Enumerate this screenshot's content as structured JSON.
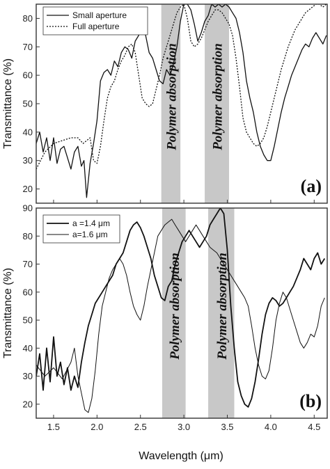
{
  "figure": {
    "xlabel": "Wavelength (μm)",
    "colors": {
      "band": "#c8c8c8",
      "line": "#111111",
      "frame": "#333333"
    }
  },
  "chart_data": [
    {
      "type": "line",
      "panel_label": "(a)",
      "ylabel": "Transmittance (%)",
      "xlim": [
        1.3,
        4.65
      ],
      "ylim": [
        15,
        85
      ],
      "x_ticks": [
        1.5,
        2.0,
        2.5,
        3.0,
        3.5,
        4.0,
        4.5
      ],
      "x_tick_labels": [],
      "y_ticks": [
        20,
        30,
        40,
        50,
        60,
        70,
        80
      ],
      "y_tick_labels": [
        "20",
        "30",
        "40",
        "50",
        "60",
        "70",
        "80"
      ],
      "legend_position": "top-left",
      "shaded_regions": [
        {
          "x0": 2.74,
          "x1": 2.96,
          "label": "Polymer absorption"
        },
        {
          "x0": 3.24,
          "x1": 3.52,
          "label": "Polymer absorption"
        }
      ],
      "series": [
        {
          "name": "Small aperture",
          "style": "solid",
          "x": [
            1.3,
            1.34,
            1.38,
            1.42,
            1.46,
            1.5,
            1.54,
            1.58,
            1.62,
            1.66,
            1.7,
            1.74,
            1.78,
            1.82,
            1.85,
            1.88,
            1.92,
            1.96,
            2.0,
            2.04,
            2.08,
            2.12,
            2.16,
            2.2,
            2.24,
            2.28,
            2.32,
            2.36,
            2.4,
            2.44,
            2.48,
            2.52,
            2.56,
            2.6,
            2.64,
            2.68,
            2.72,
            2.76,
            2.8,
            2.84,
            2.88,
            2.92,
            2.96,
            3.0,
            3.04,
            3.08,
            3.12,
            3.16,
            3.2,
            3.24,
            3.28,
            3.32,
            3.36,
            3.4,
            3.44,
            3.48,
            3.52,
            3.56,
            3.6,
            3.64,
            3.68,
            3.72,
            3.76,
            3.8,
            3.84,
            3.88,
            3.92,
            3.96,
            4.0,
            4.04,
            4.08,
            4.12,
            4.16,
            4.2,
            4.24,
            4.28,
            4.32,
            4.36,
            4.4,
            4.44,
            4.48,
            4.52,
            4.56,
            4.6,
            4.64
          ],
          "y": [
            36,
            40,
            33,
            38,
            30,
            38,
            29,
            34,
            35,
            31,
            27,
            33,
            35,
            28,
            30,
            17,
            29,
            36,
            44,
            58,
            61,
            62,
            60,
            65,
            63,
            68,
            70,
            69,
            66,
            72,
            74,
            77,
            74,
            68,
            66,
            62,
            58,
            57,
            62,
            60,
            64,
            70,
            79,
            85,
            85,
            83,
            78,
            72,
            75,
            79,
            81,
            85,
            84,
            85,
            84,
            85,
            84,
            82,
            80,
            75,
            68,
            58,
            52,
            47,
            40,
            35,
            32,
            30,
            30,
            35,
            41,
            47,
            52,
            56,
            60,
            63,
            66,
            69,
            71,
            70,
            73,
            75,
            73,
            71,
            74
          ]
        },
        {
          "name": "Full aperture",
          "style": "dotted",
          "x": [
            1.3,
            1.4,
            1.5,
            1.6,
            1.7,
            1.78,
            1.84,
            1.88,
            1.92,
            1.96,
            2.0,
            2.04,
            2.08,
            2.12,
            2.16,
            2.2,
            2.24,
            2.28,
            2.32,
            2.36,
            2.4,
            2.44,
            2.48,
            2.52,
            2.56,
            2.6,
            2.64,
            2.68,
            2.72,
            2.76,
            2.8,
            2.84,
            2.88,
            2.92,
            2.96,
            3.0,
            3.04,
            3.08,
            3.12,
            3.16,
            3.2,
            3.24,
            3.28,
            3.32,
            3.36,
            3.4,
            3.44,
            3.48,
            3.52,
            3.56,
            3.6,
            3.64,
            3.68,
            3.72,
            3.76,
            3.8,
            3.84,
            3.88,
            3.92,
            3.96,
            4.0,
            4.04,
            4.08,
            4.12,
            4.16,
            4.2,
            4.24,
            4.28,
            4.32,
            4.36,
            4.4,
            4.44,
            4.48,
            4.52,
            4.56,
            4.6,
            4.64
          ],
          "y": [
            27,
            33,
            36,
            37,
            38,
            38,
            36,
            37,
            38,
            30,
            29,
            35,
            44,
            52,
            56,
            58,
            62,
            65,
            67,
            70,
            71,
            68,
            60,
            52,
            50,
            49,
            50,
            55,
            60,
            66,
            70,
            74,
            78,
            82,
            84,
            85,
            80,
            72,
            70,
            71,
            73,
            76,
            79,
            81,
            83,
            83,
            82,
            80,
            78,
            74,
            66,
            56,
            45,
            40,
            38,
            36,
            35,
            36,
            38,
            42,
            47,
            52,
            57,
            62,
            66,
            70,
            73,
            76,
            78,
            80,
            82,
            83,
            84,
            85,
            85,
            84,
            85
          ]
        }
      ]
    },
    {
      "type": "line",
      "panel_label": "(b)",
      "ylabel": "Transmittance (%)",
      "xlim": [
        1.3,
        4.65
      ],
      "ylim": [
        15,
        90
      ],
      "x_ticks": [
        1.5,
        2.0,
        2.5,
        3.0,
        3.5,
        4.0,
        4.5
      ],
      "x_tick_labels": [
        "1.5",
        "2.0",
        "2.5",
        "3.0",
        "3.5",
        "4.0",
        "4.5"
      ],
      "y_ticks": [
        20,
        30,
        40,
        50,
        60,
        70,
        80,
        90
      ],
      "y_tick_labels": [
        "20",
        "30",
        "40",
        "50",
        "60",
        "70",
        "80",
        "90"
      ],
      "legend_position": "top-left",
      "shaded_regions": [
        {
          "x0": 2.75,
          "x1": 3.02,
          "label": "Polymer absorption"
        },
        {
          "x0": 3.28,
          "x1": 3.58,
          "label": "Polymer absorption"
        }
      ],
      "series": [
        {
          "name": "a =1.4 μm",
          "style": "bold",
          "x": [
            1.3,
            1.34,
            1.38,
            1.42,
            1.46,
            1.5,
            1.54,
            1.58,
            1.62,
            1.66,
            1.7,
            1.74,
            1.78,
            1.82,
            1.86,
            1.9,
            1.94,
            1.98,
            2.02,
            2.06,
            2.1,
            2.14,
            2.18,
            2.22,
            2.26,
            2.3,
            2.34,
            2.38,
            2.42,
            2.46,
            2.5,
            2.54,
            2.58,
            2.62,
            2.66,
            2.7,
            2.74,
            2.78,
            2.82,
            2.86,
            2.9,
            2.94,
            2.98,
            3.02,
            3.06,
            3.1,
            3.14,
            3.18,
            3.22,
            3.26,
            3.3,
            3.34,
            3.38,
            3.42,
            3.46,
            3.5,
            3.54,
            3.58,
            3.62,
            3.66,
            3.7,
            3.74,
            3.78,
            3.82,
            3.86,
            3.9,
            3.94,
            3.98,
            4.02,
            4.06,
            4.1,
            4.14,
            4.18,
            4.22,
            4.26,
            4.3,
            4.34,
            4.38,
            4.42,
            4.46,
            4.5,
            4.54,
            4.58,
            4.62
          ],
          "y": [
            30,
            38,
            25,
            40,
            28,
            44,
            30,
            35,
            27,
            33,
            25,
            30,
            26,
            35,
            42,
            48,
            52,
            56,
            58,
            60,
            62,
            64,
            66,
            70,
            72,
            74,
            78,
            82,
            84,
            85,
            83,
            80,
            76,
            72,
            66,
            62,
            58,
            57,
            62,
            64,
            70,
            74,
            78,
            80,
            82,
            80,
            78,
            76,
            78,
            80,
            84,
            86,
            88,
            90,
            88,
            75,
            55,
            40,
            28,
            23,
            20,
            19,
            22,
            28,
            36,
            45,
            52,
            56,
            58,
            57,
            55,
            56,
            58,
            60,
            62,
            65,
            68,
            72,
            70,
            68,
            72,
            74,
            70,
            72
          ]
        },
        {
          "name": "a=1.6 μm",
          "style": "thin",
          "x": [
            1.3,
            1.4,
            1.5,
            1.6,
            1.7,
            1.74,
            1.78,
            1.82,
            1.86,
            1.9,
            1.94,
            1.98,
            2.02,
            2.06,
            2.1,
            2.14,
            2.18,
            2.22,
            2.26,
            2.3,
            2.34,
            2.38,
            2.42,
            2.46,
            2.5,
            2.54,
            2.58,
            2.62,
            2.66,
            2.7,
            2.74,
            2.78,
            2.82,
            2.86,
            2.9,
            2.94,
            2.98,
            3.02,
            3.06,
            3.1,
            3.14,
            3.18,
            3.22,
            3.26,
            3.3,
            3.34,
            3.38,
            3.42,
            3.46,
            3.5,
            3.54,
            3.58,
            3.62,
            3.66,
            3.7,
            3.74,
            3.78,
            3.82,
            3.86,
            3.9,
            3.94,
            3.98,
            4.02,
            4.06,
            4.1,
            4.14,
            4.18,
            4.22,
            4.26,
            4.3,
            4.34,
            4.38,
            4.42,
            4.46,
            4.5,
            4.54,
            4.58,
            4.62
          ],
          "y": [
            34,
            30,
            33,
            29,
            35,
            40,
            30,
            24,
            18,
            17,
            22,
            32,
            45,
            55,
            60,
            65,
            68,
            70,
            72,
            70,
            66,
            60,
            55,
            52,
            50,
            55,
            62,
            68,
            74,
            80,
            82,
            84,
            85,
            86,
            84,
            82,
            80,
            78,
            80,
            82,
            84,
            82,
            80,
            78,
            76,
            75,
            74,
            72,
            70,
            68,
            66,
            64,
            62,
            60,
            58,
            55,
            48,
            40,
            34,
            30,
            29,
            32,
            40,
            50,
            56,
            60,
            58,
            54,
            50,
            46,
            42,
            40,
            42,
            45,
            44,
            48,
            55,
            58
          ]
        }
      ]
    }
  ]
}
